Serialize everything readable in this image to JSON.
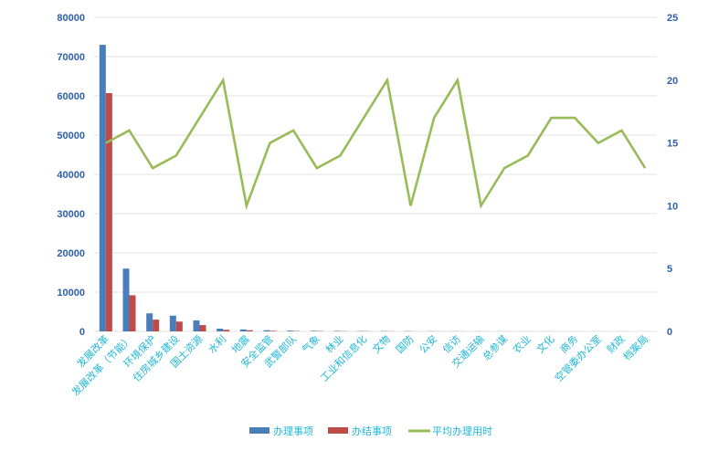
{
  "chart_data": {
    "type": "bar",
    "categories": [
      "发展改革",
      "发展改革（节能）",
      "环境保护",
      "住房城乡建设",
      "国土资源",
      "水利",
      "地震",
      "安全监管",
      "武警部队",
      "气象",
      "林业",
      "工业和信息化",
      "文物",
      "国防",
      "公安",
      "信访",
      "交通运输",
      "总参谋",
      "农业",
      "文化",
      "商务",
      "空管委办公室",
      "财政",
      "档案局"
    ],
    "series": [
      {
        "name": "办理事项",
        "type": "bar",
        "axis": "left",
        "color": "#4A7EBB",
        "values": [
          73000,
          16000,
          4600,
          4000,
          2800,
          700,
          500,
          300,
          200,
          150,
          120,
          100,
          80,
          60,
          50,
          40,
          30,
          25,
          20,
          15,
          12,
          10,
          8,
          5
        ]
      },
      {
        "name": "办结事项",
        "type": "bar",
        "axis": "left",
        "color": "#BE4B48",
        "values": [
          60700,
          9200,
          3000,
          2500,
          1600,
          400,
          300,
          150,
          100,
          80,
          60,
          50,
          40,
          30,
          25,
          20,
          15,
          12,
          10,
          8,
          6,
          5,
          4,
          3
        ]
      },
      {
        "name": "平均办理用时",
        "type": "line",
        "axis": "right",
        "color": "#9BBB59",
        "values": [
          15,
          16,
          13,
          14,
          17,
          20,
          10,
          15,
          16,
          13,
          14,
          17,
          20,
          10,
          17,
          20,
          10,
          13,
          14,
          17,
          17,
          15,
          16,
          13
        ]
      }
    ],
    "y_left": {
      "min": 0,
      "max": 80000,
      "ticks": [
        "0",
        "10000",
        "20000",
        "30000",
        "40000",
        "50000",
        "60000",
        "70000",
        "80000"
      ]
    },
    "y_right": {
      "min": 0,
      "max": 25,
      "ticks": [
        "0",
        "5",
        "10",
        "15",
        "20",
        "25"
      ]
    },
    "grid": true,
    "legend_position": "bottom"
  }
}
